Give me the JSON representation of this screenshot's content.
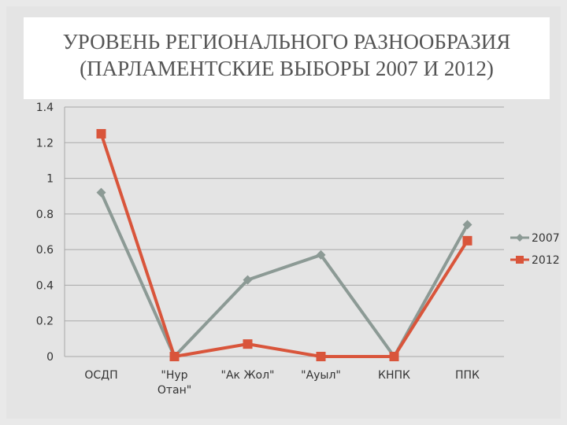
{
  "title_line1": "УРОВЕНЬ РЕГИОНАЛЬНОГО РАЗНООБРАЗИЯ",
  "title_line2": "(ПАРЛАМЕНТСКИЕ ВЫБОРЫ 2007 И 2012)",
  "colors": {
    "series_2007": "#8c9a95",
    "series_2012": "#d9553b",
    "grid": "#a9a9a9"
  },
  "chart_data": {
    "type": "line",
    "categories": [
      [
        "ОСДП"
      ],
      [
        "\"Нур",
        "Отан\""
      ],
      [
        "\"Ак Жол\""
      ],
      [
        "\"Ауыл\""
      ],
      [
        "КНПК"
      ],
      [
        "ППК"
      ]
    ],
    "yticks": [
      "0",
      "0.2",
      "0.4",
      "0.6",
      "0.8",
      "1",
      "1.2",
      "1.4"
    ],
    "ylim": [
      0,
      1.4
    ],
    "grid": true,
    "legend": "right",
    "series": [
      {
        "name": "2007",
        "marker": "diamond",
        "values": [
          0.92,
          0.0,
          0.43,
          0.57,
          0.0,
          0.74
        ]
      },
      {
        "name": "2012",
        "marker": "square",
        "values": [
          1.25,
          0.0,
          0.07,
          0.0,
          0.0,
          0.65
        ]
      }
    ]
  }
}
